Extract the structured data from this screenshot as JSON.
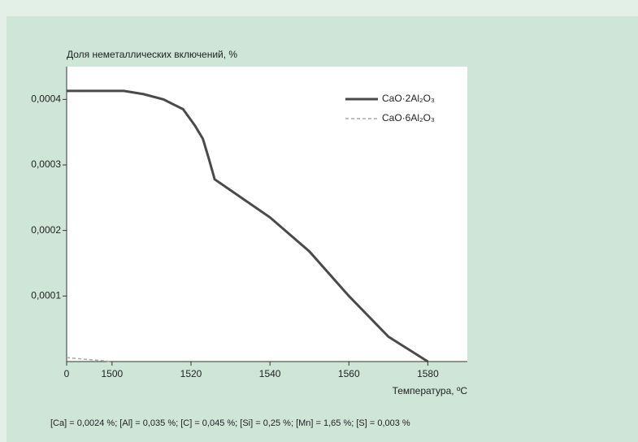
{
  "chart_data": {
    "type": "line",
    "y_label": "Доля неметаллических включений, %",
    "x_label": "Температура, ºC",
    "note": "[Ca] = 0,0024 %; [Al] = 0,035 %; [C] = 0,045 %; [Si] = 0,25 %; [Mn] = 1,65 %; [S] = 0,003 %",
    "xlim": [
      1488.5,
      1590
    ],
    "xticks": [
      {
        "value": 1488.5,
        "label": "0"
      },
      1500,
      1520,
      1540,
      1560,
      1580
    ],
    "ylim": [
      0,
      0.00045
    ],
    "yticks": [
      {
        "value": 0.0001,
        "label": "0,0001"
      },
      {
        "value": 0.0002,
        "label": "0,0002"
      },
      {
        "value": 0.0003,
        "label": "0,0003"
      },
      {
        "value": 0.0004,
        "label": "0,0004"
      }
    ],
    "legend": "upper right",
    "series": [
      {
        "name": "CaO·2Al₂O₃",
        "color": "#4a4a4a",
        "dash": false,
        "x": [
          1488.5,
          1503,
          1508,
          1513,
          1518,
          1521,
          1523,
          1524.5,
          1526,
          1533,
          1540,
          1550,
          1560,
          1570,
          1580
        ],
        "values": [
          0.000413,
          0.000413,
          0.000408,
          0.0004,
          0.000385,
          0.00036,
          0.00034,
          0.00031,
          0.000278,
          0.000249,
          0.00022,
          0.000168,
          0.0001,
          3.8e-05,
          0
        ]
      },
      {
        "name": "CaO·6Al₂O₃",
        "color": "#a8a8a8",
        "dash": true,
        "x": [
          1488.5,
          1500
        ],
        "values": [
          6e-06,
          0
        ]
      }
    ]
  }
}
